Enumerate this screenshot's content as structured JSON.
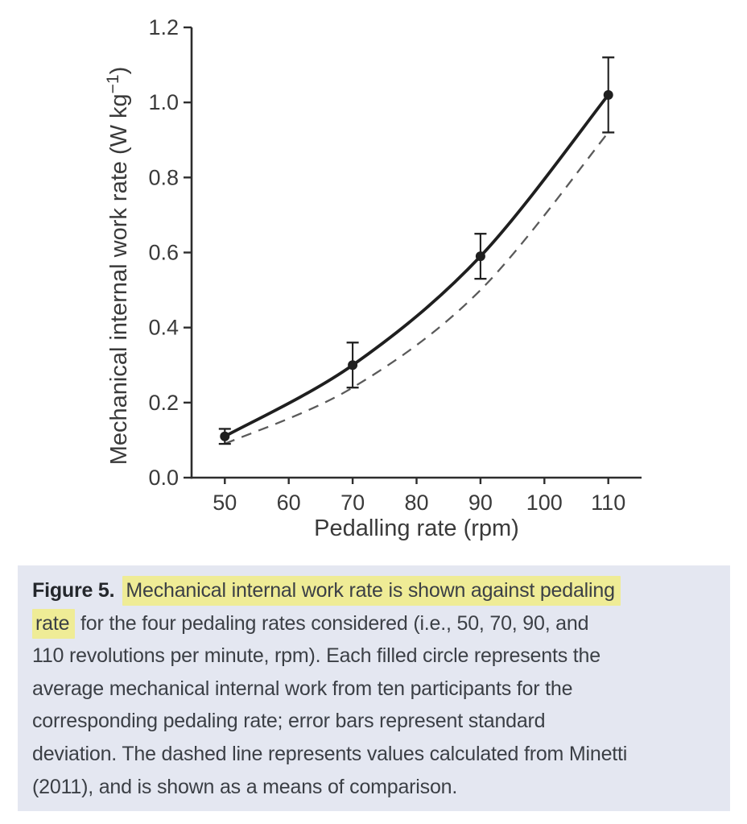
{
  "chart_data": {
    "type": "line",
    "title": "",
    "xlabel": "Pedalling rate (rpm)",
    "ylabel": "Mechanical internal work rate (W kg⁻¹)",
    "xlim": [
      44.8,
      115.2
    ],
    "ylim": [
      0.0,
      1.2
    ],
    "grid": false,
    "legend": "none",
    "x": [
      50,
      70,
      90,
      110
    ],
    "x_ticks": [
      {
        "v": 50,
        "label": "50"
      },
      {
        "v": 60,
        "label": "60"
      },
      {
        "v": 70,
        "label": "70"
      },
      {
        "v": 80,
        "label": "80"
      },
      {
        "v": 90,
        "label": "90"
      },
      {
        "v": 100,
        "label": "100"
      },
      {
        "v": 110,
        "label": "110"
      }
    ],
    "y_ticks": [
      {
        "v": 0.0,
        "label": "0.0"
      },
      {
        "v": 0.2,
        "label": "0.2"
      },
      {
        "v": 0.4,
        "label": "0.4"
      },
      {
        "v": 0.6,
        "label": "0.6"
      },
      {
        "v": 0.8,
        "label": "0.8"
      },
      {
        "v": 1.0,
        "label": "1.0"
      },
      {
        "v": 1.2,
        "label": "1.2"
      }
    ],
    "series": [
      {
        "name": "Average mechanical internal work (ten participants)",
        "line_style": "solid",
        "marker": "filled-circle",
        "color": "#1f1f1f",
        "values": [
          0.11,
          0.3,
          0.59,
          1.02
        ],
        "sd": [
          0.02,
          0.06,
          0.06,
          0.1
        ]
      },
      {
        "name": "Minetti (2011)",
        "line_style": "dashed",
        "marker": "none",
        "color": "#5a5a5a",
        "values": [
          0.09,
          0.24,
          0.5,
          0.92
        ]
      }
    ],
    "axis_color": "#2d2d2d",
    "tick_text_color": "#3a3a3a"
  },
  "caption": {
    "background_color": "#e4e7f1",
    "highlight_color": "#efec96",
    "text_color": "#3b3f45",
    "bold_text_color": "#24272c",
    "lines": [
      {
        "segments": [
          {
            "text": "Figure 5.",
            "bold": true
          },
          {
            "text": "Mechanical internal work rate is shown against pedaling",
            "highlight": true
          }
        ]
      },
      {
        "segments": [
          {
            "text": "rate",
            "highlight": true
          },
          {
            "text": " for the four pedaling rates considered (i.e., 50, 70, 90, and"
          }
        ]
      },
      {
        "segments": [
          {
            "text": "110 revolutions per minute, rpm). Each filled circle represents the"
          }
        ]
      },
      {
        "segments": [
          {
            "text": "average mechanical internal work from ten participants for the"
          }
        ]
      },
      {
        "segments": [
          {
            "text": "corresponding pedaling rate; error bars represent standard"
          }
        ]
      },
      {
        "segments": [
          {
            "text": "deviation. The dashed line represents values calculated from Minetti"
          }
        ]
      },
      {
        "segments": [
          {
            "text": "(2011), and is shown as a means of comparison."
          }
        ]
      }
    ]
  }
}
